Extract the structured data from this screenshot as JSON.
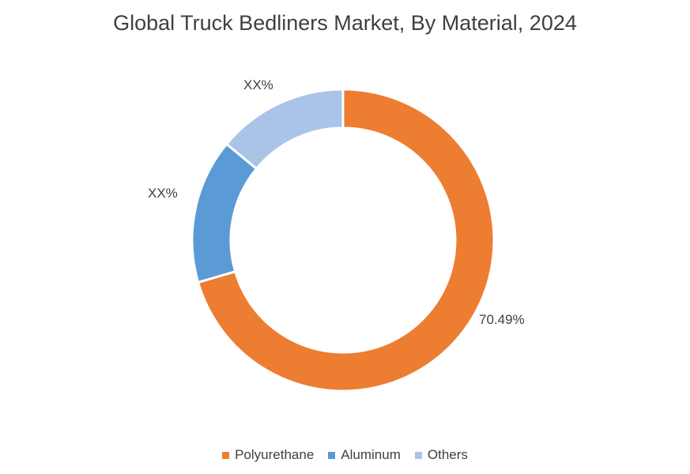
{
  "chart_data": {
    "type": "pie",
    "title": "Global Truck Bedliners Market, By Material, 2024",
    "categories": [
      "Polyurethane",
      "Aluminum",
      "Others"
    ],
    "values": [
      70.49,
      15.5,
      14.01
    ],
    "data_labels": [
      "70.49%",
      "XX%",
      "XX%"
    ],
    "colors": [
      "#ED7D31",
      "#5B9BD5",
      "#A9C4E7"
    ],
    "legend_position": "bottom",
    "donut": true
  }
}
